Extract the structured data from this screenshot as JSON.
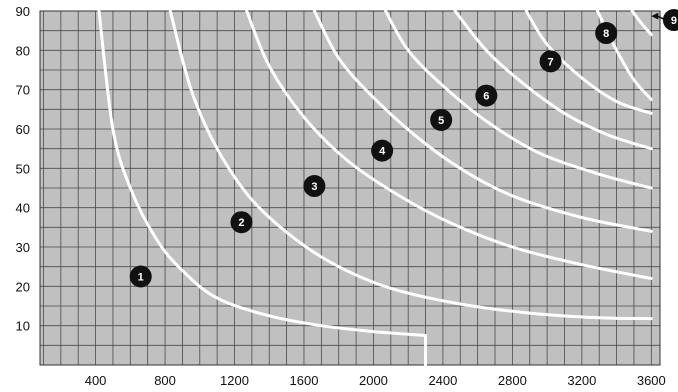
{
  "chart_data": {
    "type": "line",
    "xlim": [
      80,
      3650
    ],
    "ylim": [
      0,
      90
    ],
    "x_ticks": [
      400,
      800,
      1200,
      1600,
      2000,
      2400,
      2800,
      3200,
      3600
    ],
    "y_ticks": [
      10,
      20,
      30,
      40,
      50,
      60,
      70,
      80,
      90
    ],
    "grid": true,
    "background_color": "#c0c0c0",
    "curve_color": "#ffffff",
    "badge_color": "#111111",
    "series": [
      {
        "points": [
          [
            420,
            90
          ],
          [
            500,
            60
          ],
          [
            600,
            45
          ],
          [
            750,
            32
          ],
          [
            900,
            24
          ],
          [
            1100,
            17
          ],
          [
            1400,
            12.5
          ],
          [
            1700,
            10
          ],
          [
            2000,
            8.5
          ],
          [
            2300,
            7.5
          ],
          [
            2300,
            0
          ]
        ]
      },
      {
        "points": [
          [
            830,
            90
          ],
          [
            950,
            70
          ],
          [
            1100,
            55
          ],
          [
            1300,
            42
          ],
          [
            1550,
            32
          ],
          [
            1800,
            25
          ],
          [
            2100,
            19.5
          ],
          [
            2500,
            15.5
          ],
          [
            2900,
            13.2
          ],
          [
            3300,
            12
          ],
          [
            3600,
            11.8
          ]
        ]
      },
      {
        "points": [
          [
            1270,
            90
          ],
          [
            1400,
            76
          ],
          [
            1600,
            63
          ],
          [
            1850,
            52
          ],
          [
            2150,
            43
          ],
          [
            2450,
            36
          ],
          [
            2800,
            30
          ],
          [
            3200,
            25.5
          ],
          [
            3600,
            22
          ]
        ]
      },
      {
        "points": [
          [
            1660,
            90
          ],
          [
            1800,
            78
          ],
          [
            2000,
            68
          ],
          [
            2250,
            58
          ],
          [
            2500,
            50
          ],
          [
            2800,
            43
          ],
          [
            3200,
            37.5
          ],
          [
            3600,
            34
          ]
        ]
      },
      {
        "points": [
          [
            2070,
            90
          ],
          [
            2200,
            80
          ],
          [
            2400,
            71
          ],
          [
            2650,
            62
          ],
          [
            2950,
            54
          ],
          [
            3300,
            48.5
          ],
          [
            3600,
            45
          ]
        ]
      },
      {
        "points": [
          [
            2470,
            90
          ],
          [
            2650,
            80
          ],
          [
            2850,
            72
          ],
          [
            3100,
            64
          ],
          [
            3350,
            58.5
          ],
          [
            3600,
            55
          ]
        ]
      },
      {
        "points": [
          [
            2880,
            90
          ],
          [
            3000,
            81.5
          ],
          [
            3200,
            73
          ],
          [
            3400,
            67
          ],
          [
            3600,
            64
          ]
        ]
      },
      {
        "points": [
          [
            3290,
            90
          ],
          [
            3400,
            80
          ],
          [
            3500,
            72.5
          ],
          [
            3600,
            67.5
          ]
        ]
      },
      {
        "points": [
          [
            3490,
            90
          ],
          [
            3550,
            86.5
          ],
          [
            3600,
            84
          ]
        ]
      }
    ],
    "annotations": [
      {
        "label": "1",
        "x": 660,
        "y": 22.5
      },
      {
        "label": "2",
        "x": 1240,
        "y": 36.3
      },
      {
        "label": "3",
        "x": 1660,
        "y": 45.5
      },
      {
        "label": "4",
        "x": 2050,
        "y": 54.5
      },
      {
        "label": "5",
        "x": 2390,
        "y": 62.3
      },
      {
        "label": "6",
        "x": 2650,
        "y": 68.5
      },
      {
        "label": "7",
        "x": 3020,
        "y": 77.2
      },
      {
        "label": "8",
        "x": 3340,
        "y": 84.4
      },
      {
        "label": "9",
        "x": 3730,
        "y": 87.7,
        "arrow_to": [
          3600,
          88.7
        ]
      }
    ]
  }
}
